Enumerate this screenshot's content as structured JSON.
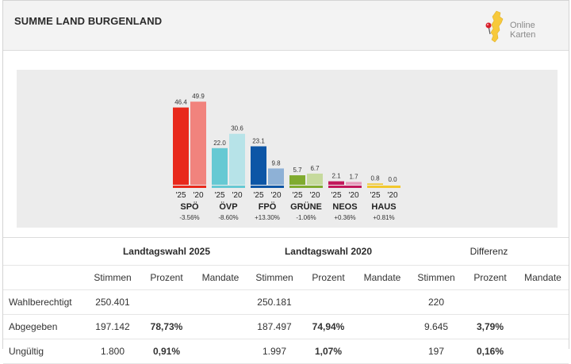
{
  "header": {
    "title": "SUMME LAND BURGENLAND",
    "logo_line1": "Online",
    "logo_line2": "Karten",
    "logo_icon": "burgenland-map-pin-icon"
  },
  "colors": {
    "header_bg": "#f3f3f3",
    "chart_bg": "#ececec",
    "SPÖ": [
      "#e8291c",
      "#f1837d"
    ],
    "ÖVP": [
      "#66c9d3",
      "#b7e3e8"
    ],
    "FPÖ": [
      "#0d56a6",
      "#8eb1d6"
    ],
    "GRÜNE": [
      "#80ab2f",
      "#c6da9d"
    ],
    "NEOS": [
      "#c2185b",
      "#e69bbb"
    ],
    "HAUS": [
      "#f2c82e",
      "#f9e39a"
    ]
  },
  "chart_data": {
    "type": "bar",
    "categories": [
      "SPÖ",
      "ÖVP",
      "FPÖ",
      "GRÜNE",
      "NEOS",
      "HAUS"
    ],
    "series": [
      {
        "name": "'25",
        "values": [
          46.4,
          22.0,
          23.1,
          5.7,
          2.1,
          0.8
        ]
      },
      {
        "name": "'20",
        "values": [
          49.9,
          30.6,
          9.8,
          6.7,
          1.7,
          0.0
        ]
      }
    ],
    "value_labels_25": [
      "46.4",
      "22.0",
      "23.1",
      "5.7",
      "2.1",
      "0.8"
    ],
    "value_labels_20": [
      "49.9",
      "30.6",
      "9.8",
      "6.7",
      "1.7",
      "0.0"
    ],
    "differences": [
      "-3.56%",
      "-8.60%",
      "+13.30%",
      "-1.06%",
      "+0.36%",
      "+0.81%"
    ],
    "ylim": [
      0,
      50
    ],
    "legend": "none",
    "grid": false
  },
  "table": {
    "group_headers": {
      "y2025": "Landtagswahl 2025",
      "y2020": "Landtagswahl 2020",
      "diff": "Differenz"
    },
    "columns": [
      "Stimmen",
      "Prozent",
      "Mandate",
      "Stimmen",
      "Prozent",
      "Mandate",
      "Stimmen",
      "Prozent",
      "Mandate"
    ],
    "rows": [
      {
        "label": "Wahlberechtigt",
        "cells": [
          "250.401",
          "",
          "",
          "250.181",
          "",
          "",
          "220",
          "",
          ""
        ]
      },
      {
        "label": "Abgegeben",
        "cells": [
          "197.142",
          "78,73%",
          "",
          "187.497",
          "74,94%",
          "",
          "9.645",
          "3,79%",
          ""
        ]
      },
      {
        "label": "Ungültig",
        "cells": [
          "1.800",
          "0,91%",
          "",
          "1.997",
          "1,07%",
          "",
          "197",
          "0,16%",
          ""
        ]
      }
    ]
  }
}
